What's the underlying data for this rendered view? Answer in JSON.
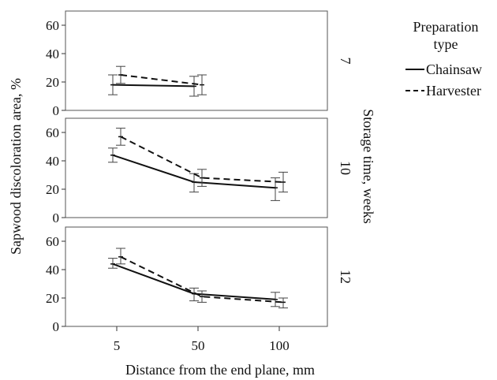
{
  "chart_data": {
    "type": "line",
    "xlabel": "Distance from the end plane, mm",
    "ylabel": "Sapwood discoloration area, %",
    "facet_label": "Storage time, weeks",
    "x_categories": [
      "5",
      "50",
      "100"
    ],
    "ylim": [
      0,
      70
    ],
    "yticks": [
      "0",
      "20",
      "40",
      "60"
    ],
    "legend": {
      "title": [
        "Preparation",
        "type"
      ],
      "placement": "top-right",
      "entries": [
        {
          "name": "Chainsaw",
          "style": "solid"
        },
        {
          "name": "Harvester",
          "style": "dashed"
        }
      ]
    },
    "panels": [
      {
        "label": "7",
        "series": [
          {
            "name": "Chainsaw",
            "points": [
              {
                "x": "5",
                "y": 18,
                "lo": 11,
                "hi": 25
              },
              {
                "x": "50",
                "y": 17,
                "lo": 10,
                "hi": 24
              }
            ]
          },
          {
            "name": "Harvester",
            "points": [
              {
                "x": "5",
                "y": 25,
                "lo": 19,
                "hi": 31
              },
              {
                "x": "50",
                "y": 18,
                "lo": 11,
                "hi": 25
              }
            ]
          }
        ]
      },
      {
        "label": "10",
        "series": [
          {
            "name": "Chainsaw",
            "points": [
              {
                "x": "5",
                "y": 44,
                "lo": 39,
                "hi": 49
              },
              {
                "x": "50",
                "y": 25,
                "lo": 18,
                "hi": 31
              },
              {
                "x": "100",
                "y": 21,
                "lo": 12,
                "hi": 28
              }
            ]
          },
          {
            "name": "Harvester",
            "points": [
              {
                "x": "5",
                "y": 57,
                "lo": 51,
                "hi": 63
              },
              {
                "x": "50",
                "y": 28,
                "lo": 22,
                "hi": 34
              },
              {
                "x": "100",
                "y": 25,
                "lo": 18,
                "hi": 32
              }
            ]
          }
        ]
      },
      {
        "label": "12",
        "series": [
          {
            "name": "Chainsaw",
            "points": [
              {
                "x": "5",
                "y": 44,
                "lo": 41,
                "hi": 48
              },
              {
                "x": "50",
                "y": 23,
                "lo": 18,
                "hi": 27
              },
              {
                "x": "100",
                "y": 19,
                "lo": 14,
                "hi": 24
              }
            ]
          },
          {
            "name": "Harvester",
            "points": [
              {
                "x": "5",
                "y": 49,
                "lo": 44,
                "hi": 55
              },
              {
                "x": "50",
                "y": 21,
                "lo": 17,
                "hi": 25
              },
              {
                "x": "100",
                "y": 17,
                "lo": 13,
                "hi": 20
              }
            ]
          }
        ]
      }
    ]
  }
}
